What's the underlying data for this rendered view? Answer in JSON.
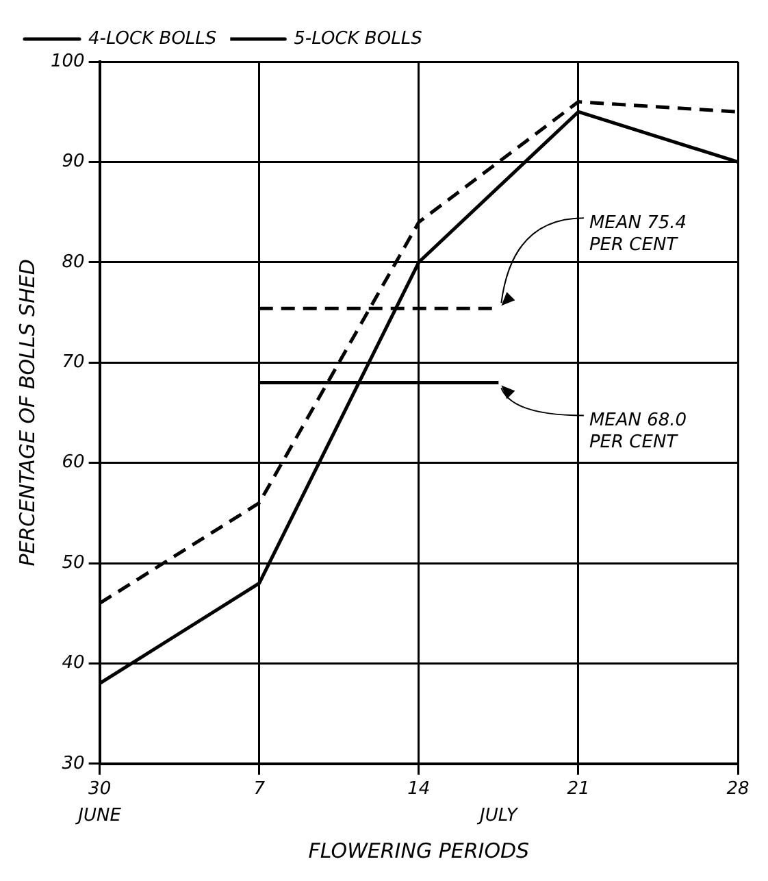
{
  "chart_data": {
    "type": "line",
    "xlabel": "FLOWERING PERIODS",
    "ylabel": "PERCENTAGE OF BOLLS SHED",
    "categories": [
      "30",
      "7",
      "14",
      "21",
      "28"
    ],
    "series": [
      {
        "name": "4-LOCK BOLLS",
        "color": "#000000",
        "values": [
          38,
          48,
          80,
          95,
          90
        ],
        "line_style": "solid"
      },
      {
        "name": "5-LOCK BOLLS",
        "color": "#000000",
        "values": [
          46,
          56,
          84,
          96,
          95
        ],
        "line_style": "dashed"
      }
    ],
    "ylim": [
      30,
      100
    ],
    "yticks": [
      30,
      40,
      50,
      60,
      70,
      80,
      90,
      100
    ],
    "grid": true,
    "legend": "top left",
    "marker": "none",
    "ref_lines": [
      {
        "axis": "y",
        "value": 75.4,
        "label": "MEAN 75.4 PER CENT",
        "line_style": "dashed",
        "color": "#000000"
      },
      {
        "axis": "y",
        "value": 68.0,
        "label": "MEAN 68.0 PER CENT",
        "line_style": "solid",
        "color": "#000000"
      }
    ],
    "annotations": [
      "JUNE",
      "JULY"
    ]
  }
}
